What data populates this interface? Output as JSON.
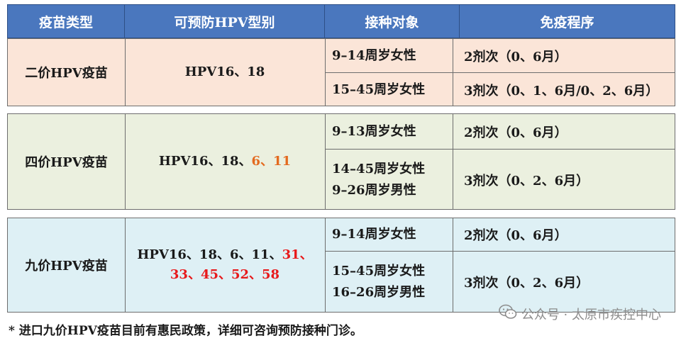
{
  "header": {
    "col1": "疫苗类型",
    "col2": "可预防HPV型别",
    "col3": "接种对象",
    "col4": "免疫程序"
  },
  "groups": [
    {
      "type": "二价HPV疫苗",
      "strains_normal": "HPV16、18",
      "rows": [
        {
          "target": "9–14周岁女性",
          "schedule": "2剂次（0、6月）"
        },
        {
          "target": "15–45周岁女性",
          "schedule": "3剂次（0、1、6月/0、2、6月）"
        }
      ]
    },
    {
      "type": "四价HPV疫苗",
      "strains_normal": "HPV16、18、",
      "strains_highlight": "6、11",
      "rows": [
        {
          "target": "9–13周岁女性",
          "schedule": "2剂次（0、6月）"
        },
        {
          "target_lines": [
            "14–45周岁女性",
            "9–26周岁男性"
          ],
          "schedule": "3剂次（0、2、6月）"
        }
      ]
    },
    {
      "type": "九价HPV疫苗",
      "strains_line1_normal": "HPV16、18、6、11、",
      "strains_line1_highlight": "31、",
      "strains_line2_highlight": "33、45、52、58",
      "rows": [
        {
          "target": "9–14周岁女性",
          "schedule": "2剂次（0、6月）"
        },
        {
          "target_lines": [
            "15–45周岁女性",
            "16–26周岁男性"
          ],
          "schedule": "3剂次（0、2、6月）"
        }
      ]
    }
  ],
  "footnote": "* 进口九价HPV疫苗目前有惠民政策，详细可咨询预防接种门诊。",
  "watermark": {
    "text": "公众号 · 太原市疾控中心",
    "icon": "wechat-icon"
  },
  "colors": {
    "header_bg": "#4a77be",
    "group1_bg": "#fbe5d8",
    "group2_bg": "#ebf0df",
    "group3_bg": "#def0f5",
    "highlight_orange": "#e36a1f",
    "highlight_red": "#e8191b"
  }
}
